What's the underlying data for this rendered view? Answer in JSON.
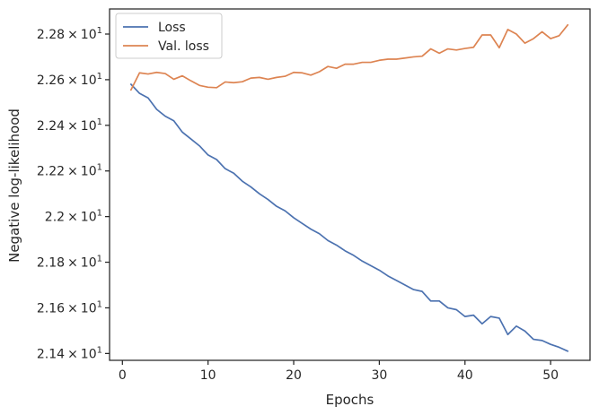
{
  "chart_data": {
    "type": "line",
    "xlabel": "Epochs",
    "ylabel": "Negative log-likelihood",
    "xlim": [
      -1.5,
      54.6
    ],
    "ylim": [
      21.37,
      22.91
    ],
    "xticks": [
      0,
      10,
      20,
      30,
      40,
      50
    ],
    "xtick_labels": [
      "0",
      "10",
      "20",
      "30",
      "40",
      "50"
    ],
    "yticks": [
      21.4,
      21.6,
      21.8,
      22.0,
      22.2,
      22.4,
      22.6,
      22.8
    ],
    "ytick_labels": [
      {
        "mantissa": "2.14",
        "times": "×",
        "base": "10",
        "exp": "1"
      },
      {
        "mantissa": "2.16",
        "times": "×",
        "base": "10",
        "exp": "1"
      },
      {
        "mantissa": "2.18",
        "times": "×",
        "base": "10",
        "exp": "1"
      },
      {
        "mantissa": "2.2",
        "times": "×",
        "base": "10",
        "exp": "1"
      },
      {
        "mantissa": "2.22",
        "times": "×",
        "base": "10",
        "exp": "1"
      },
      {
        "mantissa": "2.24",
        "times": "×",
        "base": "10",
        "exp": "1"
      },
      {
        "mantissa": "2.26",
        "times": "×",
        "base": "10",
        "exp": "1"
      },
      {
        "mantissa": "2.28",
        "times": "×",
        "base": "10",
        "exp": "1"
      }
    ],
    "legend_position": "top-left",
    "grid": false,
    "series": [
      {
        "name": "Loss",
        "color": "#4c72b0",
        "x": [
          1,
          2,
          3,
          4,
          5,
          6,
          7,
          8,
          9,
          10,
          11,
          12,
          13,
          14,
          15,
          16,
          17,
          18,
          19,
          20,
          21,
          22,
          23,
          24,
          25,
          26,
          27,
          28,
          29,
          30,
          31,
          32,
          33,
          34,
          35,
          36,
          37,
          38,
          39,
          40,
          41,
          42,
          43,
          44,
          45,
          46,
          47,
          48,
          49,
          50,
          51,
          52
        ],
        "y": [
          22.58,
          22.54,
          22.52,
          22.47,
          22.44,
          22.42,
          22.37,
          22.34,
          22.31,
          22.27,
          22.25,
          22.21,
          22.19,
          22.155,
          22.13,
          22.1,
          22.075,
          22.045,
          22.025,
          21.995,
          21.97,
          21.945,
          21.925,
          21.895,
          21.875,
          21.85,
          21.83,
          21.805,
          21.785,
          21.765,
          21.74,
          21.72,
          21.7,
          21.68,
          21.672,
          21.63,
          21.63,
          21.6,
          21.592,
          21.562,
          21.568,
          21.53,
          21.562,
          21.555,
          21.483,
          21.52,
          21.498,
          21.462,
          21.457,
          21.44,
          21.427,
          21.41
        ]
      },
      {
        "name": "Val. loss",
        "color": "#dd8452",
        "x": [
          1,
          2,
          3,
          4,
          5,
          6,
          7,
          8,
          9,
          10,
          11,
          12,
          13,
          14,
          15,
          16,
          17,
          18,
          19,
          20,
          21,
          22,
          23,
          24,
          25,
          26,
          27,
          28,
          29,
          30,
          31,
          32,
          33,
          34,
          35,
          36,
          37,
          38,
          39,
          40,
          41,
          42,
          43,
          44,
          45,
          46,
          47,
          48,
          49,
          50,
          51,
          52
        ],
        "y": [
          22.555,
          22.63,
          22.625,
          22.632,
          22.627,
          22.602,
          22.617,
          22.595,
          22.575,
          22.567,
          22.565,
          22.59,
          22.587,
          22.591,
          22.607,
          22.61,
          22.602,
          22.61,
          22.615,
          22.632,
          22.63,
          22.62,
          22.635,
          22.658,
          22.65,
          22.668,
          22.668,
          22.676,
          22.676,
          22.685,
          22.69,
          22.69,
          22.695,
          22.7,
          22.703,
          22.735,
          22.716,
          22.735,
          22.73,
          22.737,
          22.742,
          22.796,
          22.796,
          22.74,
          22.82,
          22.8,
          22.76,
          22.78,
          22.81,
          22.78,
          22.793,
          22.84
        ]
      }
    ]
  }
}
